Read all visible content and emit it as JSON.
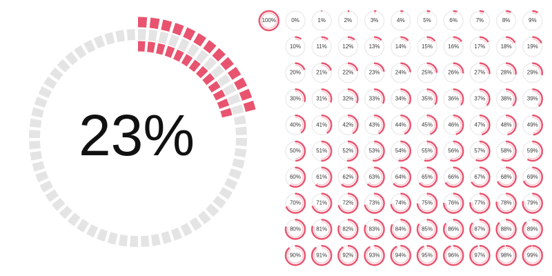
{
  "chart_data": {
    "type": "progress-rings",
    "value": 23,
    "value_label": "23%",
    "color": "#e8546f",
    "track_color": "#e4e4e4",
    "gauges": {
      "values": [
        100,
        0,
        1,
        2,
        3,
        4,
        5,
        6,
        7,
        8,
        9,
        10,
        11,
        12,
        13,
        14,
        15,
        16,
        17,
        18,
        19,
        20,
        21,
        22,
        23,
        24,
        25,
        26,
        27,
        28,
        29,
        30,
        31,
        32,
        33,
        34,
        35,
        36,
        37,
        38,
        39,
        40,
        41,
        42,
        43,
        44,
        45,
        46,
        47,
        48,
        49,
        50,
        51,
        52,
        53,
        54,
        55,
        56,
        57,
        58,
        59,
        60,
        61,
        62,
        63,
        64,
        65,
        66,
        67,
        68,
        69,
        70,
        71,
        72,
        73,
        74,
        75,
        76,
        77,
        78,
        79,
        80,
        81,
        82,
        83,
        84,
        85,
        86,
        87,
        88,
        89,
        90,
        91,
        92,
        93,
        94,
        95,
        96,
        97,
        98,
        99
      ],
      "value_labels": [
        "100%",
        "0%",
        "1%",
        "2%",
        "3%",
        "4%",
        "5%",
        "6%",
        "7%",
        "8%",
        "9%",
        "10%",
        "11%",
        "12%",
        "13%",
        "14%",
        "15%",
        "16%",
        "17%",
        "18%",
        "19%",
        "20%",
        "21%",
        "22%",
        "23%",
        "24%",
        "25%",
        "26%",
        "27%",
        "28%",
        "29%",
        "30%",
        "31%",
        "32%",
        "33%",
        "34%",
        "35%",
        "36%",
        "37%",
        "38%",
        "39%",
        "40%",
        "41%",
        "42%",
        "43%",
        "44%",
        "45%",
        "46%",
        "47%",
        "48%",
        "49%",
        "50%",
        "51%",
        "52%",
        "53%",
        "54%",
        "55%",
        "56%",
        "57%",
        "58%",
        "59%",
        "60%",
        "61%",
        "62%",
        "63%",
        "64%",
        "65%",
        "66%",
        "67%",
        "68%",
        "69%",
        "70%",
        "71%",
        "72%",
        "73%",
        "74%",
        "75%",
        "76%",
        "77%",
        "78%",
        "79%",
        "80%",
        "81%",
        "82%",
        "83%",
        "84%",
        "85%",
        "86%",
        "87%",
        "88%",
        "89%",
        "90%",
        "91%",
        "92%",
        "93%",
        "94%",
        "95%",
        "96%",
        "97%",
        "98%",
        "99%"
      ]
    }
  }
}
